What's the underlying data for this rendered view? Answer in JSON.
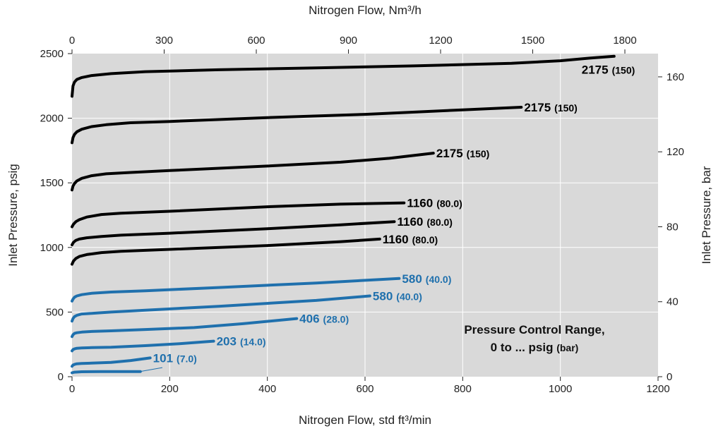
{
  "chart_data": {
    "type": "line",
    "title": "",
    "xlabel": "Nitrogen Flow, std ft³/min",
    "ylabel": "Inlet Pressure, psig",
    "x2label": "Nitrogen Flow, Nm³/h",
    "y2label": "Inlet Pressure, bar",
    "xlim": [
      0,
      1200
    ],
    "ylim": [
      0,
      2500
    ],
    "x2lim": [
      0,
      1908
    ],
    "y2lim": [
      0,
      172.4
    ],
    "x_ticks": [
      0,
      200,
      400,
      600,
      800,
      1000,
      1200
    ],
    "y_ticks": [
      0,
      500,
      1000,
      1500,
      2000,
      2500
    ],
    "x2_ticks": [
      0,
      300,
      600,
      900,
      1200,
      1500,
      1800
    ],
    "y2_ticks": [
      0,
      40,
      80,
      120,
      160
    ],
    "grid": true,
    "annotation": {
      "line1": "Pressure Control Range,",
      "line2_main": "0 to ... psig",
      "line2_sub": "(bar)"
    },
    "colors": {
      "plot_bg": "#d9d9d9",
      "grid": "#ffffff",
      "black_series": "#000000",
      "blue_series": "#1f70ad"
    },
    "series": [
      {
        "name": "2175 (150)",
        "label_main": "2175",
        "label_sub": "(150)",
        "color": "#000000",
        "x": [
          0,
          2,
          5,
          10,
          20,
          40,
          80,
          150,
          300,
          500,
          700,
          900,
          1000,
          1060,
          1110
        ],
        "y": [
          2170,
          2250,
          2280,
          2300,
          2315,
          2330,
          2345,
          2360,
          2375,
          2390,
          2405,
          2425,
          2445,
          2465,
          2480
        ]
      },
      {
        "name": "2175 (150)",
        "label_main": "2175",
        "label_sub": "(150)",
        "color": "#000000",
        "x": [
          0,
          2,
          5,
          10,
          20,
          40,
          70,
          120,
          200,
          400,
          600,
          800,
          920
        ],
        "y": [
          1810,
          1850,
          1875,
          1895,
          1915,
          1935,
          1950,
          1965,
          1975,
          2005,
          2030,
          2065,
          2085
        ]
      },
      {
        "name": "2175 (150)",
        "label_main": "2175",
        "label_sub": "(150)",
        "color": "#000000",
        "x": [
          0,
          2,
          5,
          10,
          20,
          40,
          70,
          120,
          200,
          400,
          550,
          650,
          740
        ],
        "y": [
          1445,
          1475,
          1495,
          1515,
          1535,
          1555,
          1570,
          1580,
          1595,
          1630,
          1660,
          1690,
          1730
        ]
      },
      {
        "name": "1160 (80.0)",
        "label_main": "1160",
        "label_sub": "(80.0)",
        "color": "#000000",
        "x": [
          0,
          3,
          8,
          15,
          30,
          60,
          100,
          200,
          400,
          550,
          680
        ],
        "y": [
          1160,
          1180,
          1200,
          1215,
          1235,
          1255,
          1265,
          1280,
          1315,
          1335,
          1345
        ]
      },
      {
        "name": "1160 (80.0)",
        "label_main": "1160",
        "label_sub": "(80.0)",
        "color": "#000000",
        "x": [
          0,
          3,
          8,
          15,
          30,
          60,
          100,
          200,
          400,
          550,
          660
        ],
        "y": [
          1020,
          1040,
          1055,
          1065,
          1075,
          1085,
          1095,
          1110,
          1145,
          1175,
          1200
        ]
      },
      {
        "name": "1160 (80.0)",
        "label_main": "1160",
        "label_sub": "(80.0)",
        "color": "#000000",
        "x": [
          0,
          3,
          8,
          15,
          30,
          60,
          100,
          200,
          400,
          550,
          630
        ],
        "y": [
          870,
          895,
          915,
          930,
          945,
          960,
          970,
          985,
          1015,
          1045,
          1065
        ]
      },
      {
        "name": "580 (40.0)",
        "label_main": "580",
        "label_sub": "(40.0)",
        "color": "#1f70ad",
        "x": [
          0,
          2,
          5,
          10,
          20,
          40,
          80,
          150,
          300,
          500,
          670
        ],
        "y": [
          585,
          600,
          615,
          625,
          635,
          645,
          655,
          665,
          690,
          725,
          760
        ]
      },
      {
        "name": "580 (40.0)",
        "label_main": "580",
        "label_sub": "(40.0)",
        "color": "#1f70ad",
        "x": [
          0,
          2,
          5,
          10,
          20,
          40,
          80,
          150,
          300,
          500,
          610
        ],
        "y": [
          430,
          450,
          465,
          475,
          485,
          490,
          500,
          515,
          545,
          590,
          625
        ]
      },
      {
        "name": "406 (28.0)",
        "label_main": "406",
        "label_sub": "(28.0)",
        "color": "#1f70ad",
        "x": [
          0,
          2,
          5,
          10,
          20,
          40,
          80,
          150,
          250,
          350,
          460
        ],
        "y": [
          310,
          325,
          335,
          340,
          345,
          350,
          355,
          365,
          380,
          410,
          450
        ]
      },
      {
        "name": "203 (14.0)",
        "label_main": "203",
        "label_sub": "(14.0)",
        "color": "#1f70ad",
        "x": [
          0,
          2,
          5,
          10,
          20,
          40,
          80,
          150,
          220,
          290
        ],
        "y": [
          200,
          210,
          215,
          220,
          222,
          225,
          228,
          240,
          255,
          275
        ]
      },
      {
        "name": "101 (7.0)",
        "label_main": "101",
        "label_sub": "(7.0)",
        "color": "#1f70ad",
        "x": [
          0,
          2,
          5,
          10,
          20,
          40,
          80,
          120,
          160
        ],
        "y": [
          80,
          90,
          95,
          100,
          102,
          105,
          110,
          125,
          145
        ]
      },
      {
        "name": "lowest curve",
        "label_main": "",
        "label_sub": "",
        "color": "#1f70ad",
        "x": [
          0,
          5,
          20,
          60,
          100,
          140
        ],
        "y": [
          30,
          35,
          38,
          40,
          40,
          40
        ]
      }
    ]
  }
}
